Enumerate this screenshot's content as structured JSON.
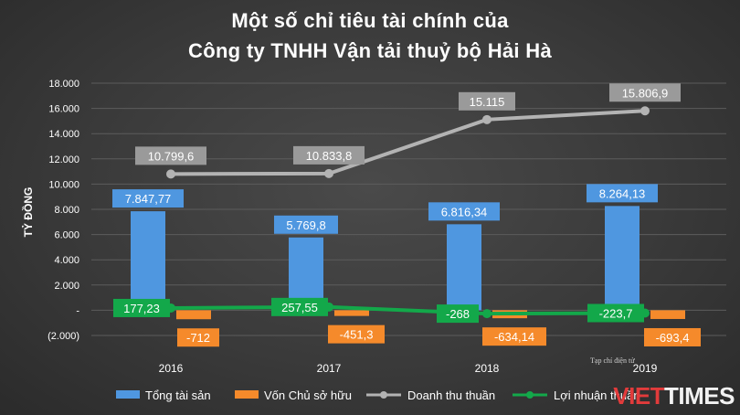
{
  "title_line1": "Một số chỉ tiêu tài chính của",
  "title_line2": "Công ty TNHH Vận tải thuỷ bộ Hải Hà",
  "credit": "Tạp chí điện tử",
  "watermark": {
    "part1": "VIET",
    "part2": "TIMES"
  },
  "chart_data": {
    "type": "bar",
    "categories": [
      "2016",
      "2017",
      "2018",
      "2019"
    ],
    "ylabel": "TỶ ĐỒNG",
    "ylim": [
      -2000,
      18000
    ],
    "y_ticks": [
      -2000,
      0,
      2000,
      4000,
      6000,
      8000,
      10000,
      12000,
      14000,
      16000,
      18000
    ],
    "y_tick_labels": [
      "(2.000)",
      "-",
      "2.000",
      "4.000",
      "6.000",
      "8.000",
      "10.000",
      "12.000",
      "14.000",
      "16.000",
      "18.000"
    ],
    "grid": true,
    "legend_position": "bottom",
    "series": [
      {
        "name": "Tổng tài sản",
        "kind": "bar",
        "color": "#4f97e0",
        "values": [
          7847.77,
          5769.8,
          6816.34,
          8264.13
        ],
        "labels": [
          "7.847,77",
          "5.769,8",
          "6.816,34",
          "8.264,13"
        ]
      },
      {
        "name": "Vốn Chủ sở hữu",
        "kind": "bar",
        "color": "#f58a2b",
        "values": [
          -712,
          -451.3,
          -634.14,
          -693.4
        ],
        "labels": [
          "-712",
          "-451,3",
          "-634,14",
          "-693,4"
        ]
      },
      {
        "name": "Doanh thu thuần",
        "kind": "line",
        "color": "#b3b3b3",
        "values": [
          10799.6,
          10833.8,
          15115,
          15806.9
        ],
        "labels": [
          "10.799,6",
          "10.833,8",
          "15.115",
          "15.806,9"
        ]
      },
      {
        "name": "Lợi nhuận thuần",
        "kind": "line",
        "color": "#13a84a",
        "values": [
          177.23,
          257.55,
          -268,
          -223.7
        ],
        "labels": [
          "177,23",
          "257,55",
          "-268",
          "-223,7"
        ]
      }
    ]
  }
}
